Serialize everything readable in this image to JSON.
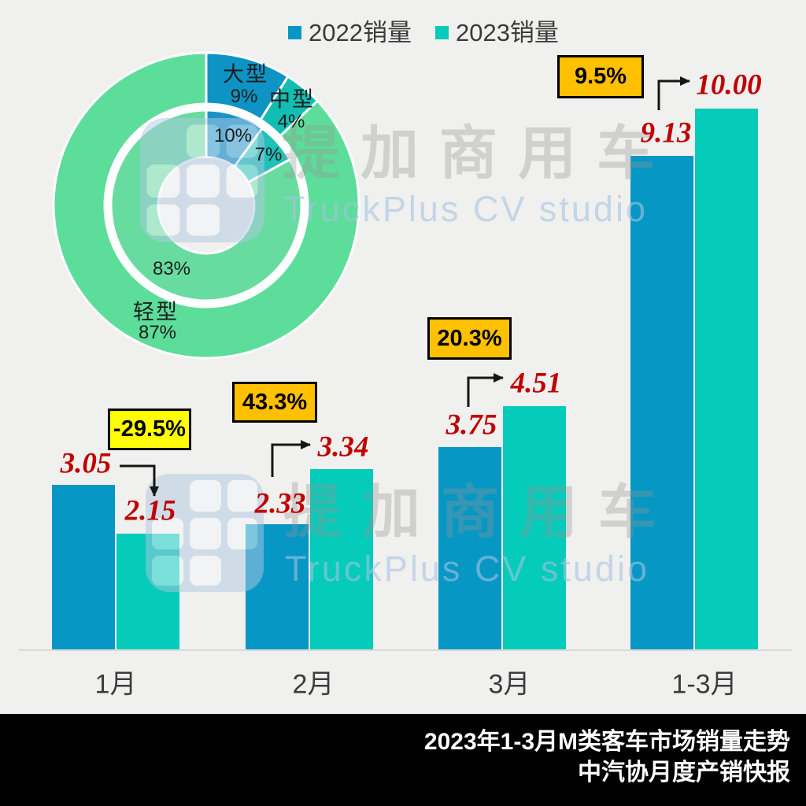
{
  "legend": {
    "items": [
      {
        "label": "2022销量",
        "color": "#0697C5"
      },
      {
        "label": "2023销量",
        "color": "#05CBBA"
      }
    ]
  },
  "watermark": {
    "cn": "提加商用车",
    "en": "TruckPlus CV studio"
  },
  "footer": {
    "line1": "2023年1-3月M类客车市场销量走势",
    "line2": "中汽协月度产销快报"
  },
  "colors": {
    "background": "#F0F0EF",
    "bar_2022": "#0697C5",
    "bar_2023": "#05CBBA",
    "value_label": "#C00000",
    "growth_box_negative": "#FFFF00",
    "growth_box_positive": "#FFC000",
    "axis_line": "#DADADA",
    "footer_bg": "#000000",
    "footer_text": "#FFFFFF"
  },
  "chart_data": [
    {
      "type": "pie",
      "subtype": "double-ring-donut",
      "rings": [
        {
          "name": "outer",
          "segments": [
            {
              "label": "大型",
              "pct": "9%",
              "value": 9,
              "color": "#0D94C5"
            },
            {
              "label": "中型",
              "pct": "4%",
              "value": 4,
              "color": "#12BEB2"
            },
            {
              "label": "轻型",
              "pct": "87%",
              "value": 87,
              "color": "#5CDD9A"
            }
          ]
        },
        {
          "name": "inner",
          "segments": [
            {
              "label": "大型",
              "pct": "10%",
              "value": 10,
              "color": "#1A93C8"
            },
            {
              "label": "中型",
              "pct": "7%",
              "value": 7,
              "color": "#1FC0B7"
            },
            {
              "label": "轻型",
              "pct": "83%",
              "value": 83,
              "color": "#68DCA0"
            }
          ]
        }
      ],
      "start_angle": "12-oclock",
      "direction": "clockwise"
    },
    {
      "type": "bar",
      "categories": [
        "1月",
        "2月",
        "3月",
        "1-3月"
      ],
      "series": [
        {
          "name": "2022销量",
          "color": "#0697C5",
          "values": [
            3.05,
            2.33,
            3.75,
            9.13
          ],
          "value_labels": [
            "3.05",
            "2.33",
            "3.75",
            "9.13"
          ]
        },
        {
          "name": "2023销量",
          "color": "#05CBBA",
          "values": [
            2.15,
            3.34,
            4.51,
            10.0
          ],
          "value_labels": [
            "2.15",
            "3.34",
            "4.51",
            "10.00"
          ]
        }
      ],
      "growth": [
        {
          "label": "-29.5%",
          "negative": true
        },
        {
          "label": "43.3%",
          "negative": false
        },
        {
          "label": "20.3%",
          "negative": false
        },
        {
          "label": "9.5%",
          "negative": false
        }
      ],
      "ylim": [
        0,
        10.5
      ],
      "grid": false,
      "legend_position": "top"
    }
  ]
}
